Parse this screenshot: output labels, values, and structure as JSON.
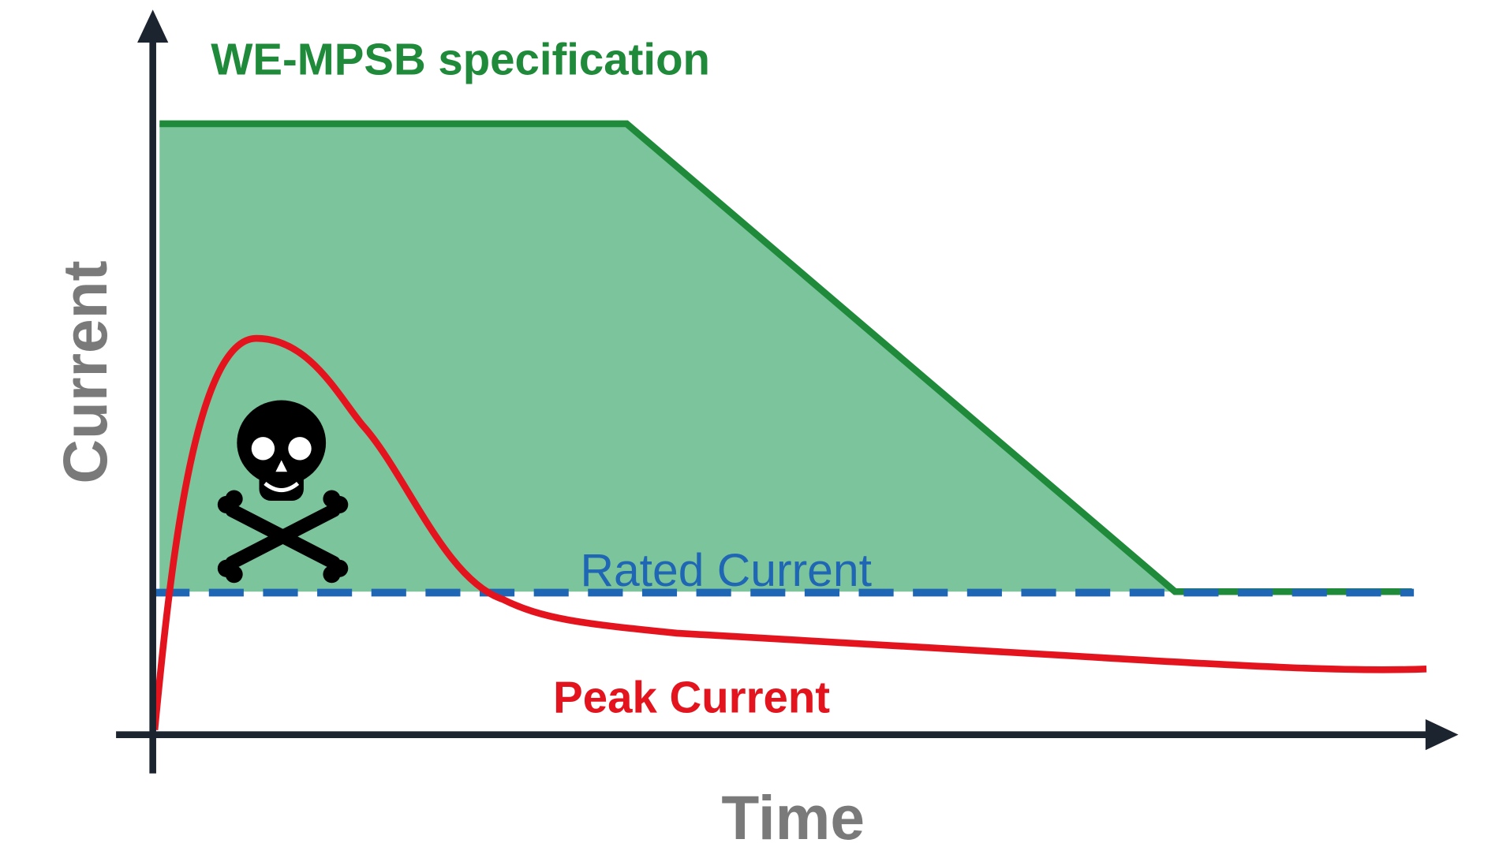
{
  "title": "WE-MPSB specification",
  "y_axis_label": "Current",
  "x_axis_label": "Time",
  "rated_label": "Rated Current",
  "peak_label": "Peak Current"
}
